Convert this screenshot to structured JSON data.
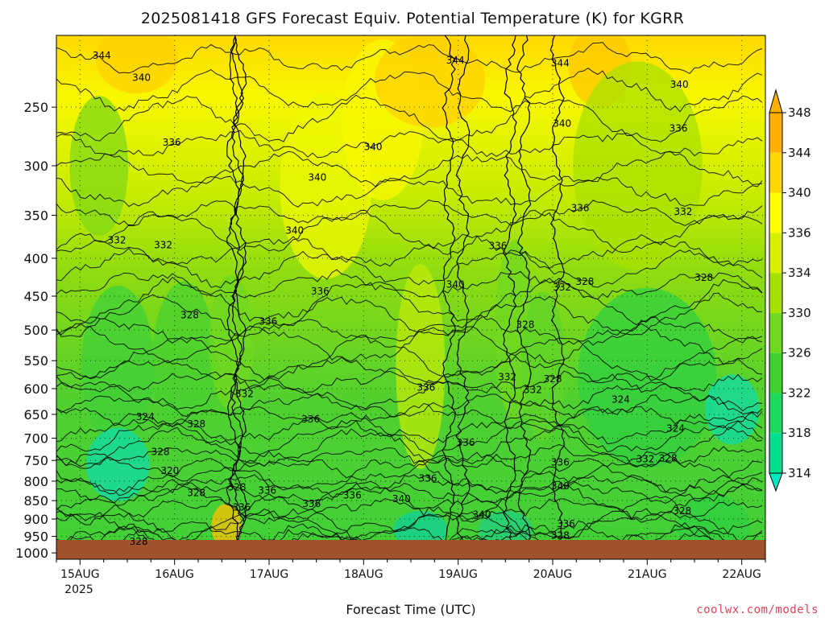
{
  "chart_data": {
    "type": "heatmap",
    "title": "2025081418 GFS Forecast Equiv. Potential Temperature (K) for KGRR",
    "xlabel": "Forecast Time (UTC)",
    "ylabel": "",
    "x_ticks": [
      "15AUG",
      "16AUG",
      "17AUG",
      "18AUG",
      "19AUG",
      "20AUG",
      "21AUG",
      "22AUG"
    ],
    "x_year_label": "2025",
    "x_range_days": [
      14.75,
      22.25
    ],
    "y_ticks": [
      250,
      300,
      350,
      400,
      450,
      500,
      550,
      600,
      650,
      700,
      750,
      800,
      850,
      900,
      950,
      1000
    ],
    "y_range_hpa": [
      200,
      1020
    ],
    "y_scale": "log",
    "ground_pressure_hpa": 990,
    "colorbar": {
      "ticks": [
        314,
        318,
        322,
        326,
        330,
        334,
        336,
        340,
        344,
        348
      ],
      "colors": [
        "#00e8c0",
        "#00e090",
        "#20d860",
        "#40d030",
        "#70d820",
        "#a8e000",
        "#d8f000",
        "#ffff00",
        "#ffd800",
        "#ffb000"
      ]
    },
    "contour_labels": [
      {
        "value": "344",
        "t": 15.23,
        "p": 213
      },
      {
        "value": "340",
        "t": 15.65,
        "p": 228
      },
      {
        "value": "336",
        "t": 15.97,
        "p": 279
      },
      {
        "value": "332",
        "t": 15.39,
        "p": 378
      },
      {
        "value": "332",
        "t": 15.88,
        "p": 384
      },
      {
        "value": "328",
        "t": 16.16,
        "p": 477
      },
      {
        "value": "324",
        "t": 15.69,
        "p": 655
      },
      {
        "value": "328",
        "t": 16.23,
        "p": 670
      },
      {
        "value": "332",
        "t": 16.74,
        "p": 610
      },
      {
        "value": "328",
        "t": 15.85,
        "p": 730
      },
      {
        "value": "320",
        "t": 15.95,
        "p": 775
      },
      {
        "value": "328",
        "t": 16.23,
        "p": 830
      },
      {
        "value": "328",
        "t": 16.66,
        "p": 815
      },
      {
        "value": "336",
        "t": 16.71,
        "p": 868
      },
      {
        "value": "328",
        "t": 15.62,
        "p": 965
      },
      {
        "value": "336",
        "t": 16.99,
        "p": 487
      },
      {
        "value": "336",
        "t": 17.54,
        "p": 443
      },
      {
        "value": "340",
        "t": 17.27,
        "p": 367
      },
      {
        "value": "340",
        "t": 17.51,
        "p": 311
      },
      {
        "value": "340",
        "t": 18.1,
        "p": 283
      },
      {
        "value": "336",
        "t": 17.44,
        "p": 660
      },
      {
        "value": "336",
        "t": 16.98,
        "p": 823
      },
      {
        "value": "336",
        "t": 17.45,
        "p": 858
      },
      {
        "value": "336",
        "t": 17.88,
        "p": 836
      },
      {
        "value": "340",
        "t": 18.4,
        "p": 845
      },
      {
        "value": "336",
        "t": 18.68,
        "p": 793
      },
      {
        "value": "336",
        "t": 18.66,
        "p": 598
      },
      {
        "value": "336",
        "t": 19.08,
        "p": 710
      },
      {
        "value": "340",
        "t": 18.97,
        "p": 434
      },
      {
        "value": "340",
        "t": 19.25,
        "p": 888
      },
      {
        "value": "344",
        "t": 18.97,
        "p": 216
      },
      {
        "value": "336",
        "t": 19.42,
        "p": 385
      },
      {
        "value": "328",
        "t": 19.71,
        "p": 492
      },
      {
        "value": "332",
        "t": 19.52,
        "p": 579
      },
      {
        "value": "332",
        "t": 19.79,
        "p": 602
      },
      {
        "value": "328",
        "t": 20.0,
        "p": 582
      },
      {
        "value": "332",
        "t": 20.1,
        "p": 438
      },
      {
        "value": "328",
        "t": 20.34,
        "p": 430
      },
      {
        "value": "336",
        "t": 20.29,
        "p": 342
      },
      {
        "value": "340",
        "t": 20.1,
        "p": 263
      },
      {
        "value": "344",
        "t": 20.08,
        "p": 218
      },
      {
        "value": "340",
        "t": 21.34,
        "p": 233
      },
      {
        "value": "336",
        "t": 21.33,
        "p": 267
      },
      {
        "value": "332",
        "t": 21.38,
        "p": 346
      },
      {
        "value": "328",
        "t": 21.6,
        "p": 425
      },
      {
        "value": "324",
        "t": 20.72,
        "p": 621
      },
      {
        "value": "324",
        "t": 21.3,
        "p": 679
      },
      {
        "value": "332",
        "t": 20.98,
        "p": 747
      },
      {
        "value": "328",
        "t": 21.22,
        "p": 745
      },
      {
        "value": "336",
        "t": 20.08,
        "p": 754
      },
      {
        "value": "340",
        "t": 20.08,
        "p": 812
      },
      {
        "value": "328",
        "t": 21.37,
        "p": 878
      },
      {
        "value": "336",
        "t": 20.14,
        "p": 914
      },
      {
        "value": "328",
        "t": 20.08,
        "p": 947
      }
    ]
  },
  "credit": "coolwx.com/models"
}
